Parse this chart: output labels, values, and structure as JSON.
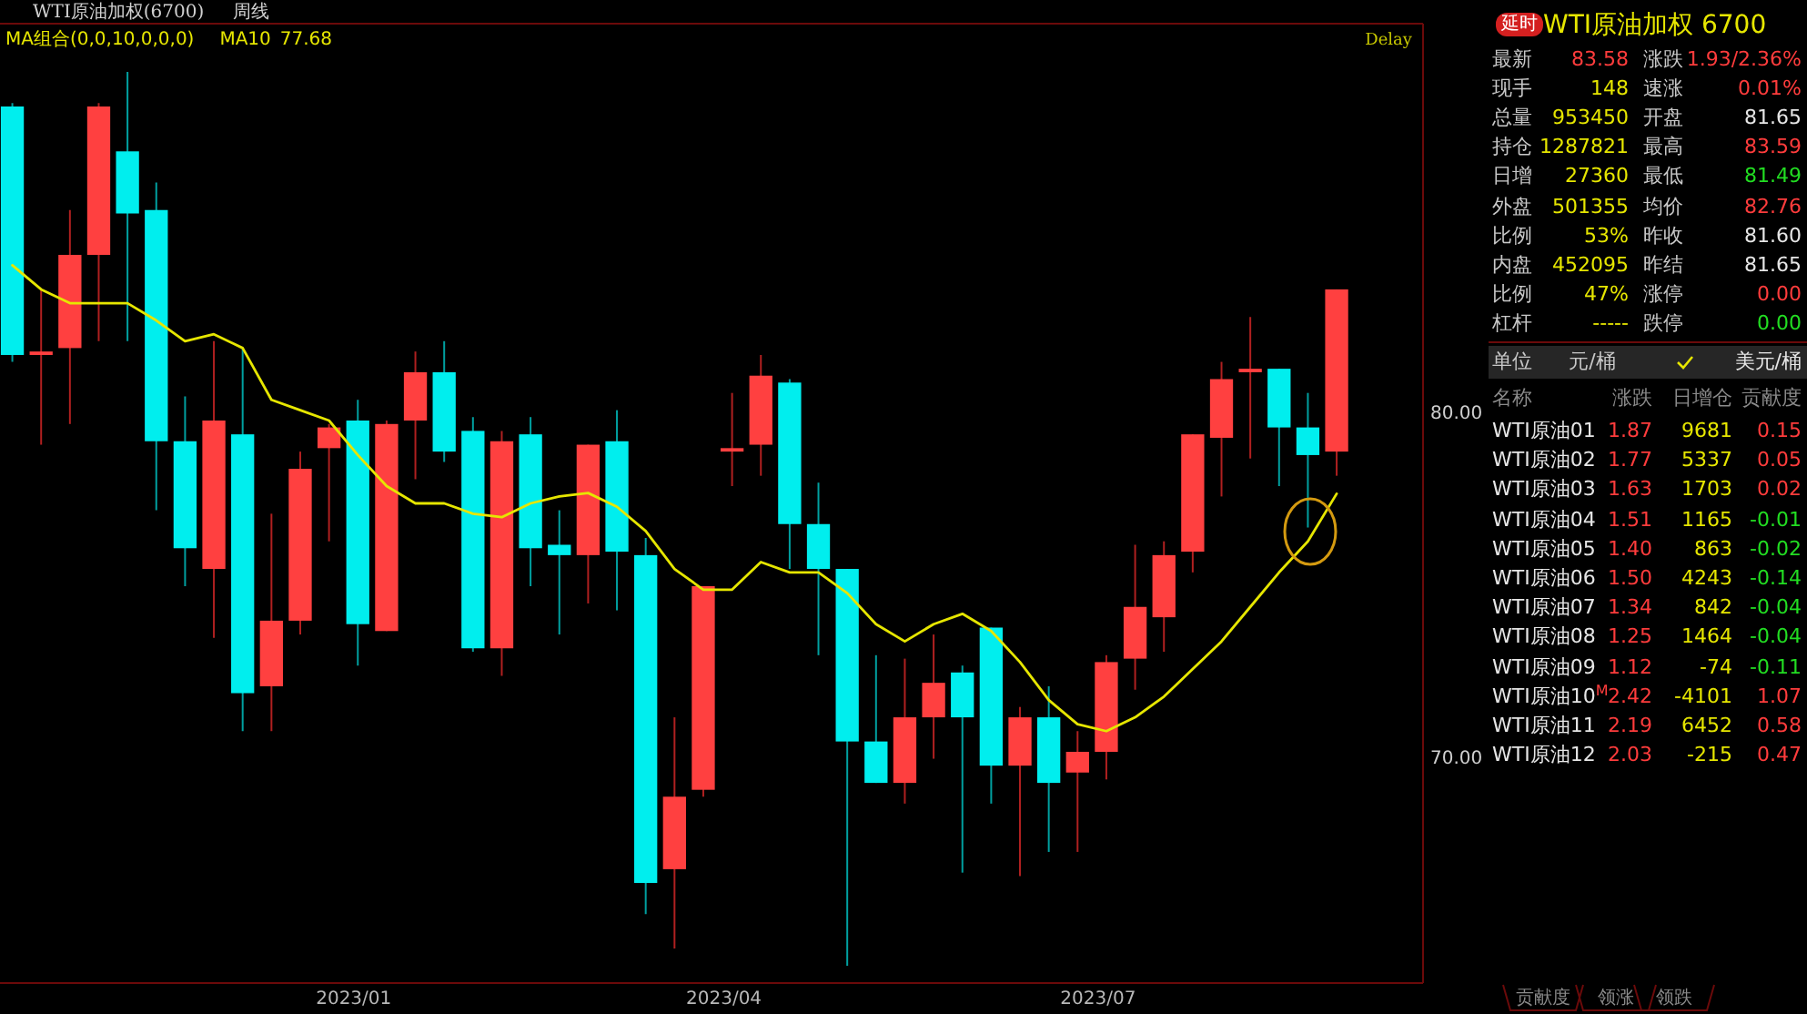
{
  "chart_data": [
    {
      "type": "candlestick",
      "title": "WTI原油加权(6700)",
      "subtitle": "周线",
      "legend_title": "MA组合(0,0,10,0,0,0)",
      "legend": "top left",
      "annotations": [
        "Delay",
        "77.68"
      ],
      "x": [
        "2022-10-10",
        "2022-10-17",
        "2022-10-24",
        "2022-10-31",
        "2022-11-07",
        "2022-11-14",
        "2022-11-21",
        "2022-11-28",
        "2022-12-05",
        "2022-12-12",
        "2022-12-19",
        "2022-12-26",
        "2023-01-02",
        "2023-01-09",
        "2023-01-16",
        "2023-01-23",
        "2023-01-30",
        "2023-02-06",
        "2023-02-13",
        "2023-02-20",
        "2023-02-27",
        "2023-03-06",
        "2023-03-13",
        "2023-03-20",
        "2023-03-27",
        "2023-04-03",
        "2023-04-10",
        "2023-04-17",
        "2023-04-24",
        "2023-05-01",
        "2023-05-08",
        "2023-05-15",
        "2023-05-22",
        "2023-05-29",
        "2023-06-05",
        "2023-06-12",
        "2023-06-19",
        "2023-06-26",
        "2023-07-03",
        "2023-07-10",
        "2023-07-17",
        "2023-07-24",
        "2023-07-31",
        "2023-08-07",
        "2023-08-14",
        "2023-08-21",
        "2023-08-28"
      ],
      "ohlc": [
        [
          88.9,
          89.0,
          81.5,
          81.7
        ],
        [
          81.7,
          83.6,
          79.1,
          81.8
        ],
        [
          81.9,
          85.9,
          79.7,
          84.6
        ],
        [
          84.6,
          89.0,
          82.1,
          88.9
        ],
        [
          87.6,
          89.9,
          82.1,
          85.8
        ],
        [
          85.9,
          86.7,
          77.2,
          79.2
        ],
        [
          79.2,
          80.5,
          75.0,
          76.1
        ],
        [
          75.5,
          82.1,
          73.5,
          79.8
        ],
        [
          79.4,
          81.9,
          70.8,
          71.9
        ],
        [
          72.1,
          77.1,
          70.8,
          74.0
        ],
        [
          74.0,
          78.9,
          73.6,
          78.4
        ],
        [
          79.0,
          79.7,
          76.3,
          79.6
        ],
        [
          79.8,
          80.4,
          72.7,
          73.9
        ],
        [
          73.7,
          79.8,
          73.7,
          79.7
        ],
        [
          79.8,
          81.8,
          78.1,
          81.2
        ],
        [
          81.2,
          82.1,
          78.6,
          78.9
        ],
        [
          79.5,
          79.9,
          73.1,
          73.2
        ],
        [
          73.2,
          79.5,
          72.4,
          79.2
        ],
        [
          79.4,
          79.9,
          75.0,
          76.1
        ],
        [
          76.2,
          77.2,
          73.6,
          75.9
        ],
        [
          75.9,
          79.1,
          74.5,
          79.1
        ],
        [
          79.2,
          80.1,
          74.3,
          76.0
        ],
        [
          75.9,
          76.4,
          65.5,
          66.4
        ],
        [
          66.8,
          71.2,
          64.5,
          68.9
        ],
        [
          69.1,
          75.0,
          68.9,
          75.0
        ],
        [
          78.9,
          80.6,
          77.9,
          79.0
        ],
        [
          79.1,
          81.7,
          78.2,
          81.1
        ],
        [
          80.9,
          81.0,
          75.5,
          76.8
        ],
        [
          76.8,
          78.0,
          73.0,
          75.5
        ],
        [
          75.5,
          75.5,
          64.0,
          70.5
        ],
        [
          70.5,
          73.0,
          69.3,
          69.3
        ],
        [
          69.3,
          72.9,
          68.7,
          71.2
        ],
        [
          71.2,
          73.6,
          70.0,
          72.2
        ],
        [
          72.5,
          72.7,
          66.7,
          71.2
        ],
        [
          73.8,
          73.8,
          68.7,
          69.8
        ],
        [
          69.8,
          71.5,
          66.6,
          71.2
        ],
        [
          71.2,
          72.1,
          67.3,
          69.3
        ],
        [
          69.6,
          70.8,
          67.3,
          70.2
        ],
        [
          70.2,
          73.0,
          69.4,
          72.8
        ],
        [
          72.9,
          76.2,
          72.0,
          74.4
        ],
        [
          74.1,
          76.3,
          73.1,
          75.9
        ],
        [
          76.0,
          79.4,
          75.4,
          79.4
        ],
        [
          79.3,
          81.5,
          77.6,
          81.0
        ],
        [
          81.2,
          82.8,
          78.7,
          81.3
        ],
        [
          81.3,
          81.3,
          77.9,
          79.6
        ],
        [
          79.6,
          80.6,
          76.7,
          78.8
        ],
        [
          78.9,
          83.6,
          78.2,
          83.6
        ]
      ],
      "series": [
        {
          "name": "MA10",
          "type": "line",
          "color": "#e6e600",
          "values": [
            84.3,
            83.6,
            83.2,
            83.2,
            83.2,
            82.7,
            82.1,
            82.3,
            81.9,
            80.4,
            80.1,
            79.8,
            78.8,
            77.9,
            77.4,
            77.4,
            77.1,
            77.0,
            77.4,
            77.6,
            77.7,
            77.3,
            76.6,
            75.5,
            74.9,
            74.9,
            75.7,
            75.4,
            75.4,
            74.8,
            73.9,
            73.4,
            73.9,
            74.2,
            73.7,
            72.8,
            71.7,
            71.0,
            70.8,
            71.2,
            71.8,
            72.6,
            73.4,
            74.4,
            75.4,
            76.3,
            77.68
          ]
        }
      ],
      "xlim": [
        "2022-10-07",
        "2023-09-18"
      ],
      "xticks": [
        {
          "value": "2023-01-01",
          "label": "2023/01"
        },
        {
          "value": "2023-04-01",
          "label": "2023/04"
        },
        {
          "value": "2023-07-01",
          "label": "2023/07"
        }
      ],
      "ylim": [
        63.5,
        91.3
      ],
      "yticks": [
        {
          "value": 70,
          "label": "70.00"
        },
        {
          "value": 80,
          "label": "80.00"
        }
      ]
    },
    {
      "type": "other",
      "title": "WTI原油加权 6700",
      "annotations": [
        "延时",
        "最新",
        "83.58",
        "涨跌",
        "1.93/2.36%",
        "现手",
        "148",
        "速涨",
        "0.01%",
        "总量",
        "953450",
        "开盘",
        "81.65",
        "持仓",
        "1287821",
        "最高",
        "83.59",
        "日增",
        "27360",
        "最低",
        "81.49",
        "外盘",
        "501355",
        "均价",
        "82.76",
        "比例",
        "53%",
        "昨收",
        "81.60",
        "内盘",
        "452095",
        "昨结",
        "81.65",
        "比例",
        "47%",
        "涨停",
        "0.00",
        "杠杆",
        "-----",
        "跌停",
        "0.00",
        "单位",
        "元/桶",
        "美元/桶",
        "名称",
        "涨跌",
        "日增仓",
        "贡献度",
        "WTI原油01",
        "1.87",
        "9681",
        "0.15",
        "WTI原油02",
        "1.77",
        "5337",
        "0.05",
        "WTI原油03",
        "1.63",
        "1703",
        "0.02",
        "WTI原油04",
        "1.51",
        "1165",
        "-0.01",
        "WTI原油05",
        "1.40",
        "863",
        "-0.02",
        "WTI原油06",
        "1.50",
        "4243",
        "-0.14",
        "WTI原油07",
        "1.34",
        "842",
        "-0.04",
        "WTI原油08",
        "1.25",
        "1464",
        "-0.04",
        "WTI原油09",
        "1.12",
        "-74",
        "-0.11",
        "WTI原油10$^{M}$",
        "2.42",
        "-4101",
        "1.07",
        "WTI原油11",
        "2.19",
        "6452",
        "0.58",
        "WTI原油12",
        "2.03",
        "-215",
        "0.47",
        "贡献度",
        "领涨",
        "领跌"
      ]
    }
  ]
}
